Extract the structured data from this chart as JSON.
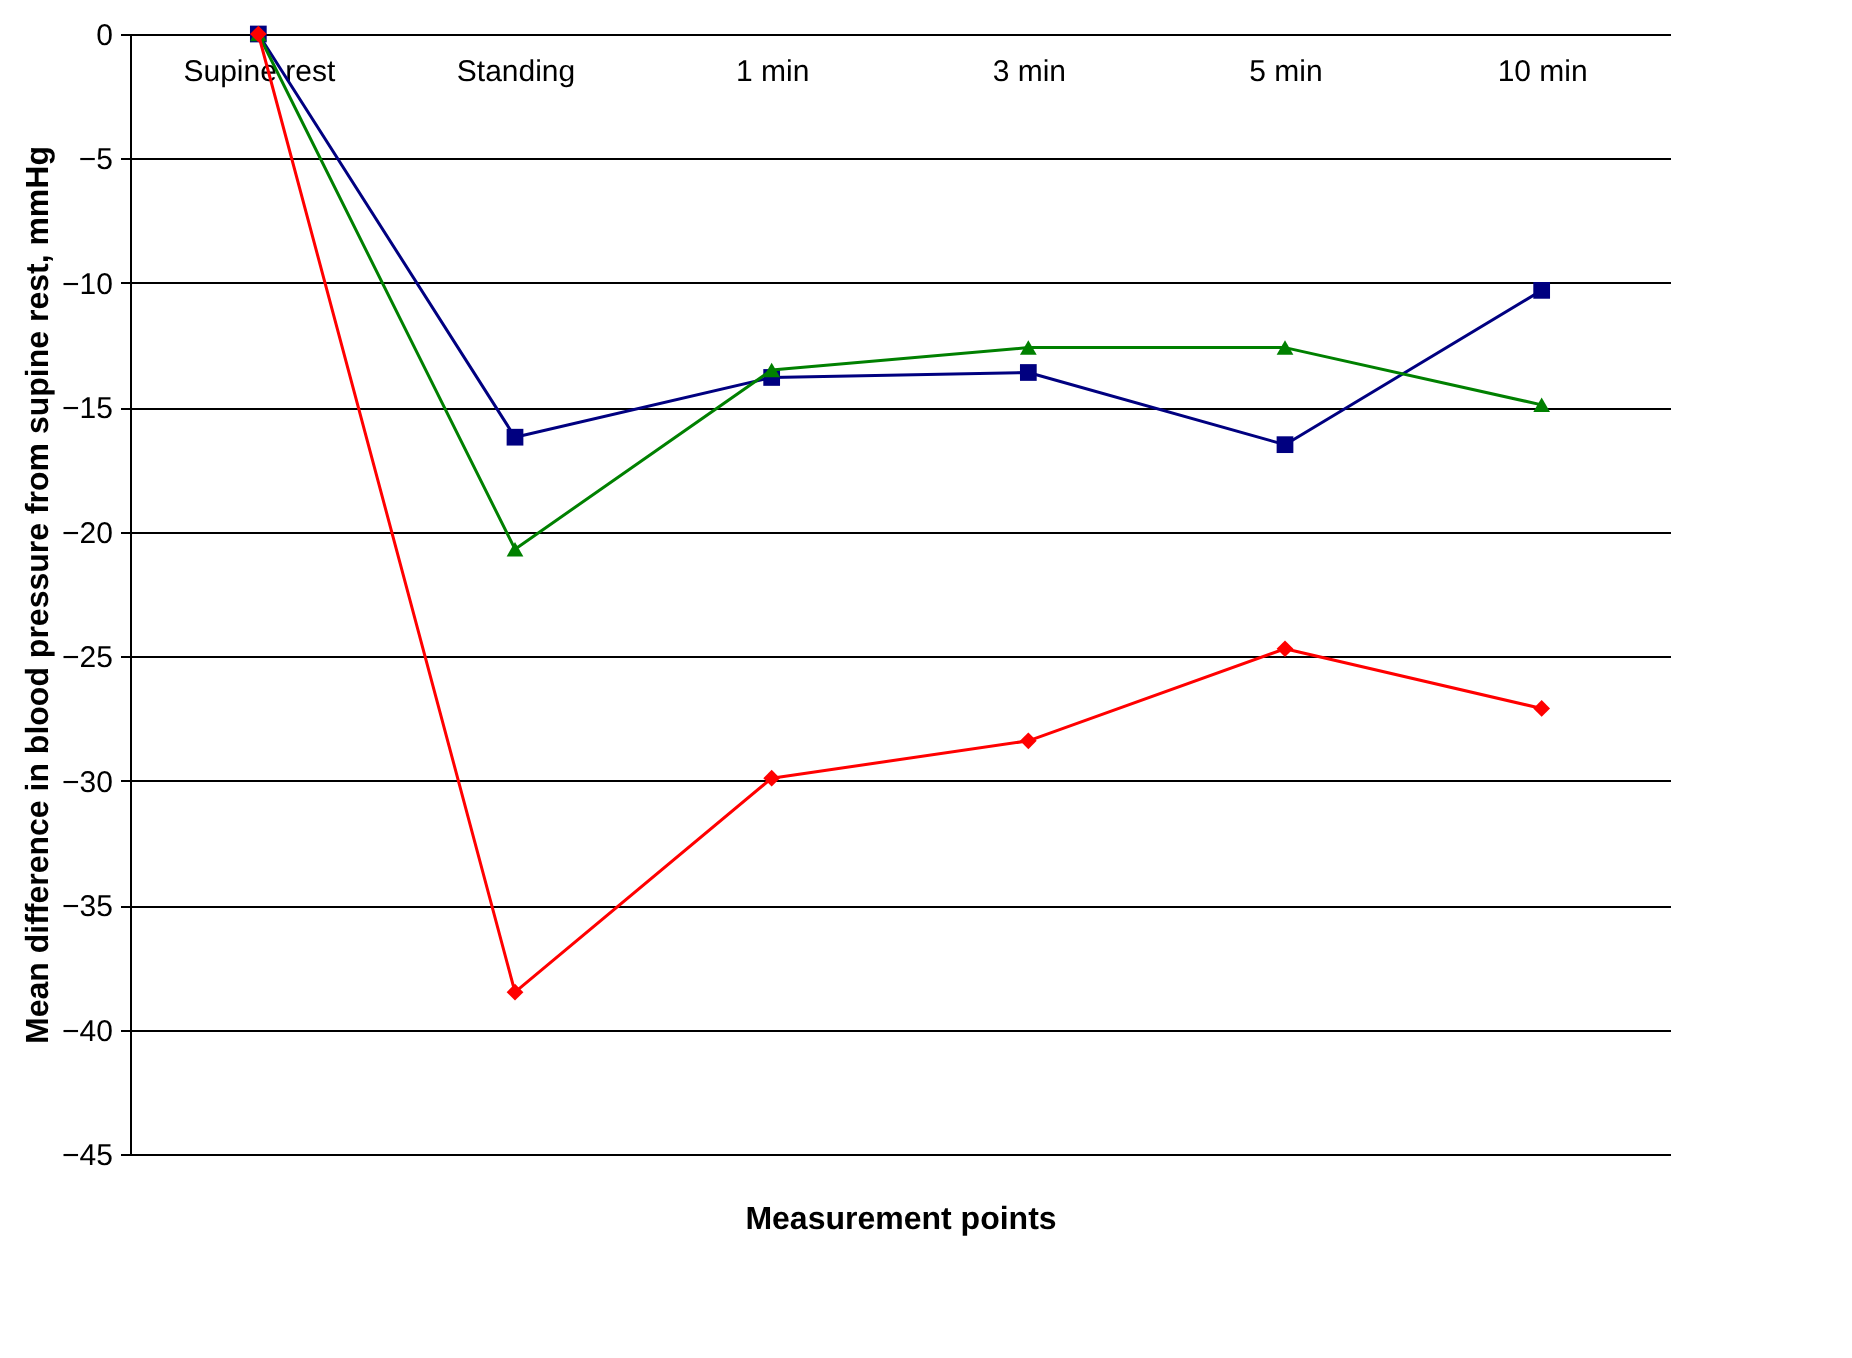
{
  "chart_data": {
    "type": "line",
    "xlabel": "Measurement points",
    "ylabel": "Mean difference in blood pressure from supine rest, mmHg",
    "categories": [
      "Supine rest",
      "Standing",
      "1 min",
      "3 min",
      "5 min",
      "10 min"
    ],
    "series": [
      {
        "color": "#000080",
        "marker": "square",
        "values": [
          0,
          -16.2,
          -13.8,
          -13.6,
          -16.5,
          -10.3
        ]
      },
      {
        "color": "#008000",
        "marker": "triangle",
        "values": [
          0,
          -20.7,
          -13.5,
          -12.6,
          -12.6,
          -14.9
        ]
      },
      {
        "color": "#ff0000",
        "marker": "diamond",
        "values": [
          0,
          -38.5,
          -29.9,
          -28.4,
          -24.7,
          -27.1
        ]
      }
    ],
    "ylim": [
      -45,
      0
    ],
    "yticks": [
      -45,
      -40,
      -35,
      -30,
      -25,
      -20,
      -15,
      -10,
      -5,
      0
    ],
    "grid": "y",
    "line_style": "solid"
  }
}
